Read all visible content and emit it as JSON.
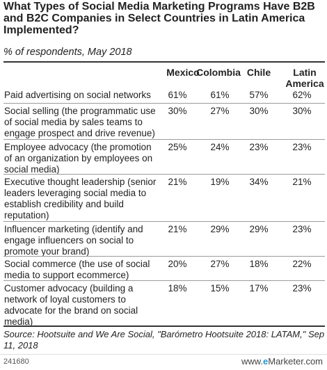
{
  "chart_data": {
    "type": "table",
    "title": "What Types of Social Media Marketing Programs Have B2B and B2C Companies in Select Countries in Latin America Implemented?",
    "subtitle": "% of respondents, May 2018",
    "columns": [
      "Mexico",
      "Colombia",
      "Chile",
      "Latin America"
    ],
    "rows": [
      {
        "label": "Paid advertising on social networks",
        "values": [
          "61%",
          "61%",
          "57%",
          "62%"
        ]
      },
      {
        "label": "Social selling (the programmatic use of social media by sales teams to engage prospect and drive revenue)",
        "values": [
          "30%",
          "27%",
          "30%",
          "30%"
        ]
      },
      {
        "label": "Employee advocacy (the promotion of an organization by employees on social media)",
        "values": [
          "25%",
          "24%",
          "23%",
          "23%"
        ]
      },
      {
        "label": "Executive thought leadership (senior leaders leveraging social media to establish credibility and build reputation)",
        "values": [
          "21%",
          "19%",
          "34%",
          "21%"
        ]
      },
      {
        "label": "Influencer marketing (identify and engage influencers on social to promote your brand)",
        "values": [
          "21%",
          "29%",
          "29%",
          "23%"
        ]
      },
      {
        "label": "Social commerce (the use of social media to support ecommerce)",
        "values": [
          "20%",
          "27%",
          "18%",
          "22%"
        ]
      },
      {
        "label": "Customer advocacy (building a network of loyal customers to advocate for the brand on social media)",
        "values": [
          "18%",
          "15%",
          "17%",
          "23%"
        ]
      }
    ]
  },
  "source": "Source: Hootsuite and We Are Social, \"Barómetro Hootsuite 2018: LATAM,\" Sep 11, 2018",
  "footer": {
    "chart_id": "241680",
    "brand_prefix": "www.",
    "brand_e": "e",
    "brand_name": "Marketer",
    "brand_suffix": ".com"
  }
}
